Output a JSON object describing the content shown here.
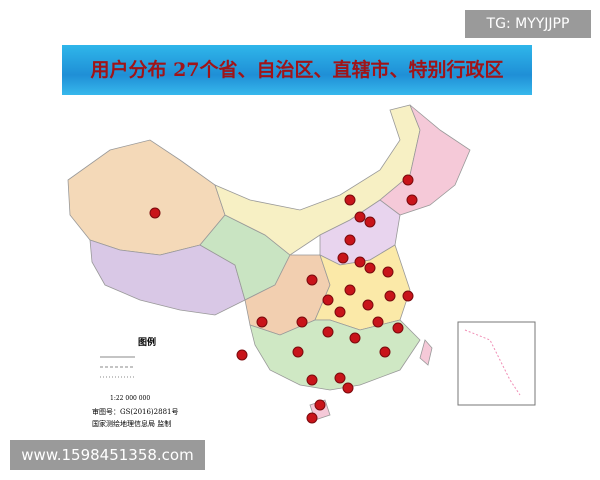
{
  "header": {
    "badge": "TG: MYYJJPP",
    "title": "用户分布 27个省、自治区、直辖市、特别行政区"
  },
  "map": {
    "legend_title": "图例",
    "scale": "1:22 000 000",
    "approval": "审图号：GS(2016)2881号",
    "issuer": "国家测绘地理信息局 监制"
  },
  "footer": {
    "watermark": "www.1598451358.com"
  }
}
